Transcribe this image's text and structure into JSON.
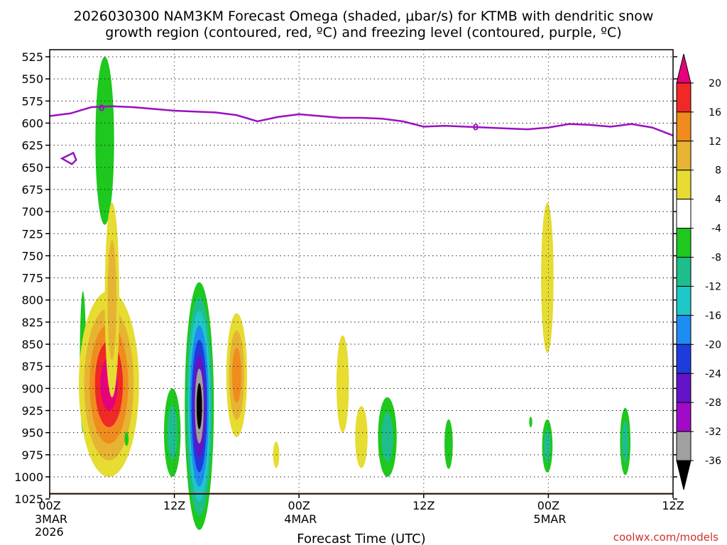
{
  "chart_data": {
    "type": "heatmap",
    "title_line1": "2026030300 NAM3KM Forecast Omega (shaded, μbar/s) for KTMB with dendritic snow",
    "title_line2": "growth region (contoured, red, ºC) and freezing level (contoured, purple, ºC)",
    "xlabel": "Forecast Time (UTC)",
    "credit": "coolwx.com/models",
    "y_ticks": [
      525,
      550,
      575,
      600,
      625,
      650,
      675,
      700,
      725,
      750,
      775,
      800,
      825,
      850,
      875,
      900,
      925,
      950,
      975,
      1000,
      1025
    ],
    "ylim": [
      525,
      1025
    ],
    "xlim": [
      0,
      60
    ],
    "x_ticks": [
      {
        "hours": 0,
        "label": "00Z",
        "date": "3MAR",
        "year": "2026"
      },
      {
        "hours": 12,
        "label": "12Z",
        "date": "",
        "year": ""
      },
      {
        "hours": 24,
        "label": "00Z",
        "date": "4MAR",
        "year": ""
      },
      {
        "hours": 36,
        "label": "12Z",
        "date": "",
        "year": ""
      },
      {
        "hours": 48,
        "label": "00Z",
        "date": "5MAR",
        "year": ""
      },
      {
        "hours": 60,
        "label": "12Z",
        "date": "",
        "year": ""
      }
    ],
    "grid": true,
    "colorbar": {
      "labels": [
        "20",
        "16",
        "12",
        "8",
        "4",
        "-4",
        "-8",
        "-12",
        "-16",
        "-20",
        "-24",
        "-28",
        "-32",
        "-36"
      ],
      "colors": [
        "#e6007e",
        "#f02828",
        "#f08c1e",
        "#e6b432",
        "#e6dc32",
        "#ffffff",
        "#1ec81e",
        "#1ebe8c",
        "#1ec8c8",
        "#1e8cf0",
        "#1e3cdc",
        "#6414c8",
        "#a00ac8",
        "#a0a0a0",
        "#000000"
      ]
    },
    "freezing_level": {
      "label": "0",
      "color": "#9a10c0",
      "points": [
        [
          0,
          592
        ],
        [
          2,
          589
        ],
        [
          4,
          582
        ],
        [
          6,
          581
        ],
        [
          8,
          582
        ],
        [
          10,
          584
        ],
        [
          12,
          586
        ],
        [
          14,
          587
        ],
        [
          16,
          588
        ],
        [
          18,
          591
        ],
        [
          20,
          598
        ],
        [
          22,
          593
        ],
        [
          24,
          590
        ],
        [
          26,
          592
        ],
        [
          28,
          594
        ],
        [
          30,
          594
        ],
        [
          32,
          595
        ],
        [
          34,
          598
        ],
        [
          36,
          604
        ],
        [
          38,
          603
        ],
        [
          40,
          604
        ],
        [
          42,
          605
        ],
        [
          44,
          606
        ],
        [
          46,
          607
        ],
        [
          48,
          605
        ],
        [
          50,
          601
        ],
        [
          52,
          602
        ],
        [
          54,
          604
        ],
        [
          56,
          601
        ],
        [
          58,
          605
        ],
        [
          60,
          614
        ]
      ],
      "loop_point": [
        2,
        640
      ]
    },
    "omega_features": [
      {
        "x": 5.3,
        "p": 620,
        "dx": 0.9,
        "dp": 95,
        "levels": [
          "#1ec81e"
        ]
      },
      {
        "x": 3.2,
        "p": 870,
        "dx": 0.3,
        "dp": 80,
        "levels": [
          "#1ec81e"
        ]
      },
      {
        "x": 5.7,
        "p": 895,
        "dx": 2.9,
        "dp": 105,
        "levels": [
          "#e6dc32",
          "#e6b432",
          "#f08c1e",
          "#f02828",
          "#e6007e"
        ]
      },
      {
        "x": 6.0,
        "p": 800,
        "dx": 0.7,
        "dp": 110,
        "levels": [
          "#e6dc32",
          "#e6b432"
        ]
      },
      {
        "x": 7.4,
        "p": 957,
        "dx": 0.2,
        "dp": 8,
        "levels": [
          "#1ec81e"
        ]
      },
      {
        "x": 14.4,
        "p": 920,
        "dx": 1.4,
        "dp": 140,
        "levels": [
          "#1ec81e",
          "#1ebe8c",
          "#1ec8c8",
          "#1e8cf0",
          "#1e3cdc",
          "#6414c8",
          "#a0a0a0",
          "#000000"
        ]
      },
      {
        "x": 11.8,
        "p": 950,
        "dx": 0.8,
        "dp": 50,
        "levels": [
          "#1ec81e",
          "#1ebe8c"
        ]
      },
      {
        "x": 18.0,
        "p": 885,
        "dx": 1.0,
        "dp": 70,
        "levels": [
          "#e6dc32",
          "#e6b432",
          "#f08c1e"
        ]
      },
      {
        "x": 21.8,
        "p": 975,
        "dx": 0.3,
        "dp": 15,
        "levels": [
          "#e6dc32"
        ]
      },
      {
        "x": 28.2,
        "p": 895,
        "dx": 0.6,
        "dp": 55,
        "levels": [
          "#e6dc32"
        ]
      },
      {
        "x": 30.0,
        "p": 955,
        "dx": 0.6,
        "dp": 35,
        "levels": [
          "#e6dc32"
        ]
      },
      {
        "x": 32.5,
        "p": 955,
        "dx": 0.9,
        "dp": 45,
        "levels": [
          "#1ec81e",
          "#1ebe8c"
        ]
      },
      {
        "x": 38.4,
        "p": 963,
        "dx": 0.4,
        "dp": 28,
        "levels": [
          "#1ec81e"
        ]
      },
      {
        "x": 46.3,
        "p": 938,
        "dx": 0.15,
        "dp": 6,
        "levels": [
          "#1ec81e"
        ]
      },
      {
        "x": 47.9,
        "p": 775,
        "dx": 0.6,
        "dp": 85,
        "levels": [
          "#e6dc32"
        ]
      },
      {
        "x": 47.9,
        "p": 965,
        "dx": 0.5,
        "dp": 30,
        "levels": [
          "#1ec81e",
          "#1ebe8c"
        ]
      },
      {
        "x": 55.4,
        "p": 960,
        "dx": 0.5,
        "dp": 38,
        "levels": [
          "#1ec81e",
          "#1ebe8c"
        ]
      }
    ],
    "ground": {
      "color": "#b4602e",
      "top_p": 1018
    }
  }
}
